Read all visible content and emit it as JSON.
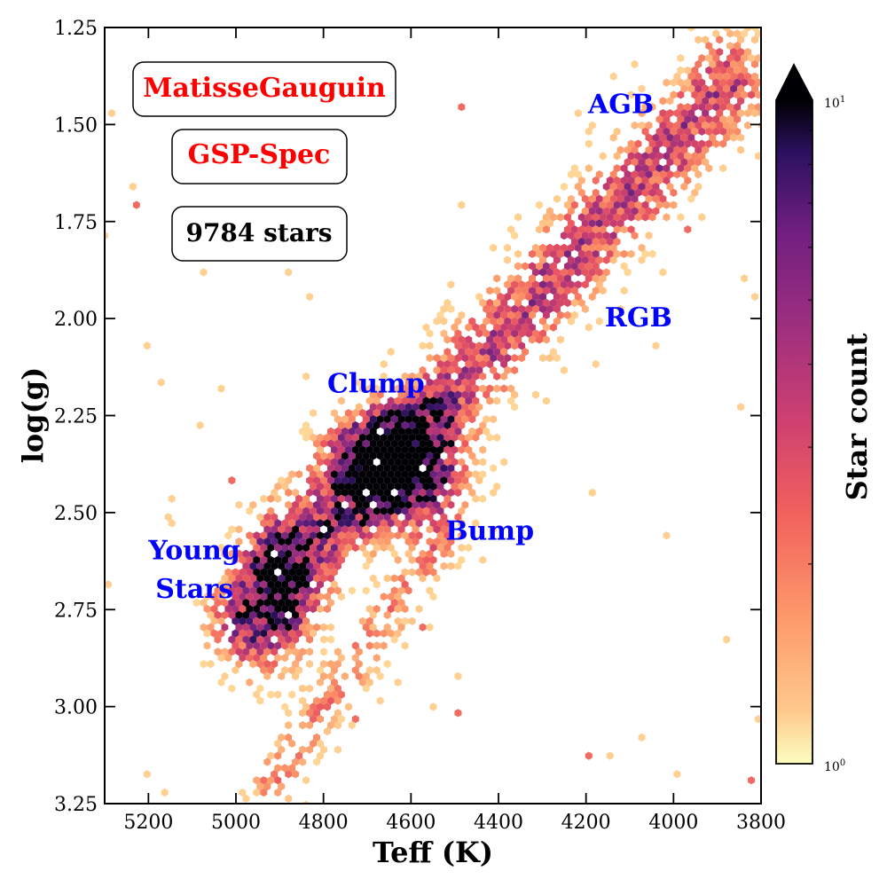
{
  "chart_data": {
    "type": "hexbin",
    "xlabel": "Teff (K)",
    "ylabel": "log(g)",
    "xlim": [
      5300,
      3800
    ],
    "ylim": [
      3.25,
      1.25
    ],
    "x_ticks": [
      5200,
      5000,
      4800,
      4600,
      4400,
      4200,
      4000,
      3800
    ],
    "y_ticks": [
      1.25,
      1.5,
      1.75,
      2.0,
      2.25,
      2.5,
      2.75,
      3.0,
      3.25
    ],
    "y_tick_labels": [
      "1.25",
      "1.50",
      "1.75",
      "2.00",
      "2.25",
      "2.50",
      "2.75",
      "3.00",
      "3.25"
    ],
    "colorbar": {
      "label": "Star count",
      "scale": "log",
      "min": 1,
      "max": 10,
      "tick_min_label": "10",
      "tick_min_exp": "0",
      "tick_max_label": "10",
      "tick_max_exp": "1",
      "colormap": "magma_r",
      "extend": "max"
    },
    "boxes": [
      {
        "text": "MatisseGauguin",
        "color": "#ff0000"
      },
      {
        "text": "GSP-Spec",
        "color": "#ff0000"
      },
      {
        "text": "9784 stars",
        "color": "#000000"
      }
    ],
    "annotations": [
      {
        "text": "AGB",
        "x": 4120,
        "y": 1.47,
        "color": "#0000ff"
      },
      {
        "text": "RGB",
        "x": 4080,
        "y": 2.02,
        "color": "#0000ff"
      },
      {
        "text": "Clump",
        "x": 4680,
        "y": 2.19,
        "color": "#0000ff"
      },
      {
        "text": "Bump",
        "x": 4420,
        "y": 2.57,
        "color": "#0000ff"
      },
      {
        "text": "Young",
        "x": 5095,
        "y": 2.62,
        "color": "#0000ff"
      },
      {
        "text": "Stars",
        "x": 5095,
        "y": 2.72,
        "color": "#0000ff"
      }
    ],
    "density_components": [
      {
        "name": "rgb_sequence",
        "x0": 4980,
        "y0": 2.78,
        "x1": 3880,
        "y1": 1.4,
        "width": 0.1,
        "weight": 1.0
      },
      {
        "name": "clump",
        "x": 4640,
        "y": 2.38,
        "sx": 90,
        "sy": 0.09,
        "weight": 2.6
      },
      {
        "name": "young_stars",
        "x": 4900,
        "y": 2.68,
        "sx": 60,
        "sy": 0.12,
        "weight": 1.3
      },
      {
        "name": "lower_branch",
        "x0": 4920,
        "y0": 3.2,
        "x1": 4520,
        "y1": 2.55,
        "width": 0.06,
        "weight": 0.55
      }
    ]
  }
}
